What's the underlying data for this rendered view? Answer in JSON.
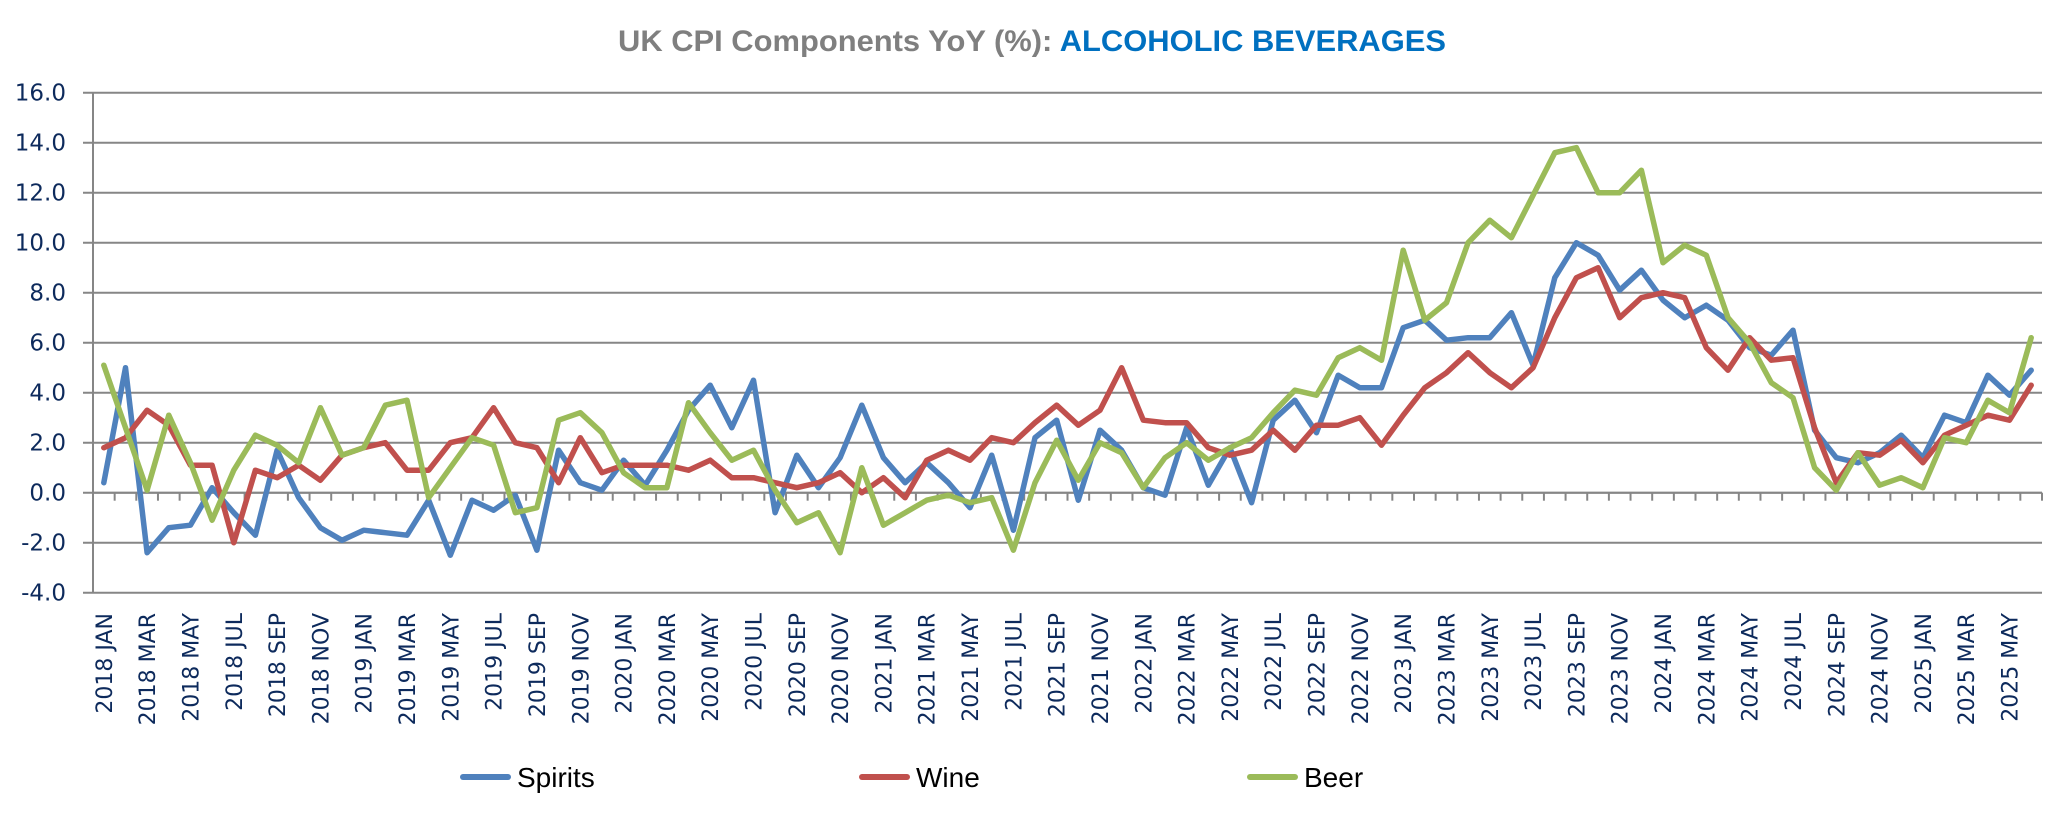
{
  "chart_data": {
    "type": "line",
    "title": "UK CPI Components YoY (%): ",
    "title_highlight": "ALCOHOLIC BEVERAGES",
    "xlabel": "",
    "ylabel": "",
    "ylim": [
      -4,
      16
    ],
    "yticks": [
      "16.0",
      "14.0",
      "12.0",
      "10.0",
      "8.0",
      "6.0",
      "4.0",
      "2.0",
      "0.0",
      "-2.0",
      "-4.0"
    ],
    "ytick_values": [
      16,
      14,
      12,
      10,
      8,
      6,
      4,
      2,
      0,
      -2,
      -4
    ],
    "grid": true,
    "legend_position": "bottom",
    "x_start": "2018 JAN",
    "x_months": 90,
    "xtick_labels": [
      "2018 JAN",
      "2018 MAR",
      "2018 MAY",
      "2018 JUL",
      "2018 SEP",
      "2018 NOV",
      "2019 JAN",
      "2019 MAR",
      "2019 MAY",
      "2019 JUL",
      "2019 SEP",
      "2019 NOV",
      "2020 JAN",
      "2020 MAR",
      "2020 MAY",
      "2020 JUL",
      "2020 SEP",
      "2020 NOV",
      "2021 JAN",
      "2021 MAR",
      "2021 MAY",
      "2021 JUL",
      "2021 SEP",
      "2021 NOV",
      "2022 JAN",
      "2022 MAR",
      "2022 MAY",
      "2022 JUL",
      "2022 SEP",
      "2022 NOV",
      "2023 JAN",
      "2023 MAR",
      "2023 MAY",
      "2023 JUL",
      "2023 SEP",
      "2023 NOV",
      "2024 JAN",
      "2024 MAR",
      "2024 MAY",
      "2024 JUL",
      "2024 SEP",
      "2024 NOV",
      "2025 JAN",
      "2025 MAR",
      "2025 MAY"
    ],
    "series": [
      {
        "name": "Spirits",
        "color": "#4F81BD",
        "values": [
          0.4,
          5.0,
          -2.4,
          -1.4,
          -1.3,
          0.2,
          -0.8,
          -1.7,
          1.7,
          -0.2,
          -1.4,
          -1.9,
          -1.5,
          -1.6,
          -1.7,
          -0.3,
          -2.5,
          -0.3,
          -0.7,
          -0.1,
          -2.3,
          1.7,
          0.4,
          0.1,
          1.3,
          0.3,
          1.7,
          3.3,
          4.3,
          2.6,
          4.5,
          -0.8,
          1.5,
          0.2,
          1.4,
          3.5,
          1.4,
          0.4,
          1.2,
          0.4,
          -0.6,
          1.5,
          -1.5,
          2.2,
          2.9,
          -0.3,
          2.5,
          1.7,
          0.2,
          -0.1,
          2.6,
          0.3,
          1.8,
          -0.4,
          2.9,
          3.7,
          2.4,
          4.7,
          4.2,
          4.2,
          6.6,
          6.9,
          6.1,
          6.2,
          6.2,
          7.2,
          5.1,
          8.6,
          10.0,
          9.5,
          8.1,
          8.9,
          7.7,
          7.0,
          7.5,
          6.9,
          5.8,
          5.5,
          6.5,
          2.5,
          1.4,
          1.2,
          1.6,
          2.3,
          1.4,
          3.1,
          2.8,
          4.7,
          3.9,
          4.9
        ]
      },
      {
        "name": "Wine",
        "color": "#C0504D",
        "values": [
          1.8,
          2.2,
          3.3,
          2.7,
          1.1,
          1.1,
          -2.0,
          0.9,
          0.6,
          1.1,
          0.5,
          1.5,
          1.8,
          2.0,
          0.9,
          0.9,
          2.0,
          2.2,
          3.4,
          2.0,
          1.8,
          0.4,
          2.2,
          0.8,
          1.1,
          1.1,
          1.1,
          0.9,
          1.3,
          0.6,
          0.6,
          0.4,
          0.2,
          0.4,
          0.8,
          0.0,
          0.6,
          -0.2,
          1.3,
          1.7,
          1.3,
          2.2,
          2.0,
          2.8,
          3.5,
          2.7,
          3.3,
          5.0,
          2.9,
          2.8,
          2.8,
          1.8,
          1.5,
          1.7,
          2.5,
          1.7,
          2.7,
          2.7,
          3.0,
          1.9,
          3.1,
          4.2,
          4.8,
          5.6,
          4.8,
          4.2,
          5.0,
          7.0,
          8.6,
          9.0,
          7.0,
          7.8,
          8.0,
          7.8,
          5.8,
          4.9,
          6.2,
          5.3,
          5.4,
          2.6,
          0.4,
          1.6,
          1.5,
          2.1,
          1.2,
          2.3,
          2.7,
          3.1,
          2.9,
          4.3
        ]
      },
      {
        "name": "Beer",
        "color": "#9BBB59",
        "values": [
          5.1,
          2.6,
          0.1,
          3.1,
          1.2,
          -1.1,
          0.9,
          2.3,
          1.9,
          1.2,
          3.4,
          1.5,
          1.8,
          3.5,
          3.7,
          -0.2,
          1.0,
          2.2,
          1.9,
          -0.8,
          -0.6,
          2.9,
          3.2,
          2.4,
          0.8,
          0.2,
          0.2,
          3.6,
          2.4,
          1.3,
          1.7,
          0.1,
          -1.2,
          -0.8,
          -2.4,
          1.0,
          -1.3,
          -0.8,
          -0.3,
          -0.1,
          -0.4,
          -0.2,
          -2.3,
          0.4,
          2.1,
          0.5,
          2.0,
          1.6,
          0.2,
          1.4,
          2.0,
          1.3,
          1.8,
          2.2,
          3.2,
          4.1,
          3.9,
          5.4,
          5.8,
          5.3,
          9.7,
          6.9,
          7.6,
          10.0,
          10.9,
          10.2,
          11.9,
          13.6,
          13.8,
          12.0,
          12.0,
          12.9,
          9.2,
          9.9,
          9.5,
          7.0,
          6.0,
          4.4,
          3.8,
          1.0,
          0.1,
          1.6,
          0.3,
          0.6,
          0.2,
          2.2,
          2.0,
          3.7,
          3.2,
          6.2
        ]
      }
    ]
  },
  "colors": {
    "title_gray": "#7F7F7F",
    "title_blue": "#0070C0",
    "axis_text": "#0D2A5C",
    "grid": "#868686"
  }
}
